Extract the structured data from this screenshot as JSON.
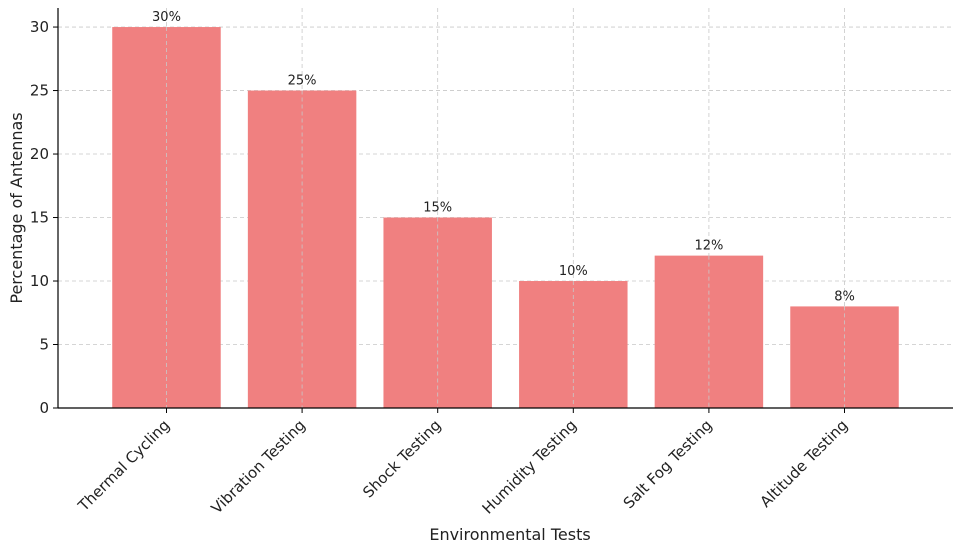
{
  "chart_data": {
    "type": "bar",
    "title": "",
    "xlabel": "Environmental Tests",
    "ylabel": "Percentage of Antennas",
    "categories": [
      "Thermal Cycling",
      "Vibration Testing",
      "Shock Testing",
      "Humidity Testing",
      "Salt Fog Testing",
      "Altitude Testing"
    ],
    "values": [
      30,
      25,
      15,
      10,
      12,
      8
    ],
    "data_labels": [
      "30%",
      "25%",
      "15%",
      "10%",
      "12%",
      "8%"
    ],
    "ylim": [
      0,
      31.5
    ],
    "yticks": [
      0,
      5,
      10,
      15,
      20,
      25,
      30
    ],
    "ytick_labels": [
      "0",
      "5",
      "10",
      "15",
      "20",
      "25",
      "30"
    ],
    "grid": true,
    "legend": "none",
    "bar_color": "#f08080"
  }
}
